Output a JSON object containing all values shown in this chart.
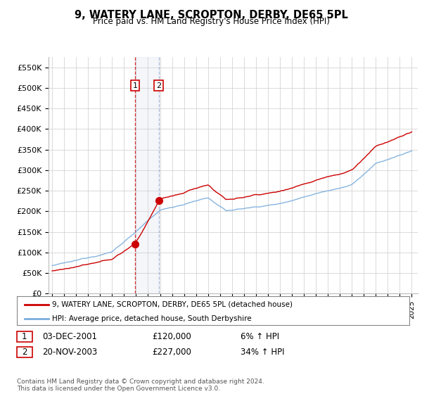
{
  "title": "9, WATERY LANE, SCROPTON, DERBY, DE65 5PL",
  "subtitle": "Price paid vs. HM Land Registry's House Price Index (HPI)",
  "ylabel_ticks": [
    "£0",
    "£50K",
    "£100K",
    "£150K",
    "£200K",
    "£250K",
    "£300K",
    "£350K",
    "£400K",
    "£450K",
    "£500K",
    "£550K"
  ],
  "ytick_values": [
    0,
    50000,
    100000,
    150000,
    200000,
    250000,
    300000,
    350000,
    400000,
    450000,
    500000,
    550000
  ],
  "ylim": [
    0,
    575000
  ],
  "xlim_start": 1994.7,
  "xlim_end": 2025.5,
  "sale1_date": 2001.92,
  "sale1_price": 120000,
  "sale1_label": "1",
  "sale2_date": 2003.9,
  "sale2_price": 227000,
  "sale2_label": "2",
  "legend_line1": "9, WATERY LANE, SCROPTON, DERBY, DE65 5PL (detached house)",
  "legend_line2": "HPI: Average price, detached house, South Derbyshire",
  "table_row1": [
    "1",
    "03-DEC-2001",
    "£120,000",
    "6% ↑ HPI"
  ],
  "table_row2": [
    "2",
    "20-NOV-2003",
    "£227,000",
    "34% ↑ HPI"
  ],
  "footer": "Contains HM Land Registry data © Crown copyright and database right 2024.\nThis data is licensed under the Open Government Licence v3.0.",
  "red_color": "#cc0000",
  "blue_color": "#7aaddc",
  "sale_dot_color": "#cc0000",
  "bg_color": "#ffffff",
  "grid_color": "#cccccc"
}
